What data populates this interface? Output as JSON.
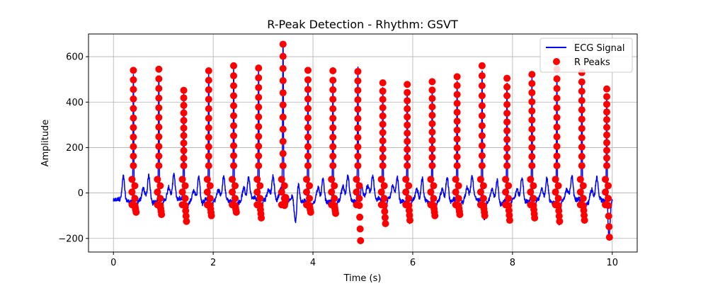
{
  "chart_data": {
    "type": "line",
    "title": "R-Peak Detection - Rhythm: GSVT",
    "xlabel": "Time (s)",
    "ylabel": "Amplitude",
    "xlim": [
      -0.5,
      10.5
    ],
    "ylim": [
      -260,
      700
    ],
    "x_ticks": [
      0,
      2,
      4,
      6,
      8,
      10
    ],
    "x_tick_labels": [
      "0",
      "2",
      "4",
      "6",
      "8",
      "10"
    ],
    "y_ticks": [
      -200,
      0,
      200,
      400,
      600
    ],
    "y_tick_labels": [
      "−200",
      "0",
      "200",
      "400",
      "600"
    ],
    "grid": true,
    "legend": {
      "position": "top-right",
      "entries": [
        {
          "label": "ECG Signal",
          "marker": "line",
          "color": "#0000ff"
        },
        {
          "label": "R Peaks",
          "marker": "circle",
          "color": "#ff0000"
        }
      ]
    },
    "colors": {
      "signal": "#0000ff",
      "peaks": "#ff0000"
    },
    "beats": [
      {
        "t": 0.4,
        "peak": 540,
        "trough": -85
      },
      {
        "t": 0.91,
        "peak": 545,
        "trough": -95
      },
      {
        "t": 1.41,
        "peak": 452,
        "trough": -125
      },
      {
        "t": 1.91,
        "peak": 538,
        "trough": -100
      },
      {
        "t": 2.41,
        "peak": 560,
        "trough": -85
      },
      {
        "t": 2.91,
        "peak": 550,
        "trough": -110
      },
      {
        "t": 3.4,
        "peak": 655,
        "trough": -20
      },
      {
        "t": 3.9,
        "peak": 540,
        "trough": -85
      },
      {
        "t": 4.4,
        "peak": 538,
        "trough": -90
      },
      {
        "t": 4.9,
        "peak": 535,
        "trough": -210
      },
      {
        "t": 5.4,
        "peak": 485,
        "trough": -135
      },
      {
        "t": 5.89,
        "peak": 478,
        "trough": -120
      },
      {
        "t": 6.39,
        "peak": 490,
        "trough": -100
      },
      {
        "t": 6.89,
        "peak": 512,
        "trough": -95
      },
      {
        "t": 7.39,
        "peak": 560,
        "trough": -100
      },
      {
        "t": 7.89,
        "peak": 505,
        "trough": -120
      },
      {
        "t": 8.39,
        "peak": 522,
        "trough": -110
      },
      {
        "t": 8.89,
        "peak": 545,
        "trough": -125
      },
      {
        "t": 9.39,
        "peak": 530,
        "trough": -120
      },
      {
        "t": 9.89,
        "peak": 458,
        "trough": -195
      }
    ]
  }
}
